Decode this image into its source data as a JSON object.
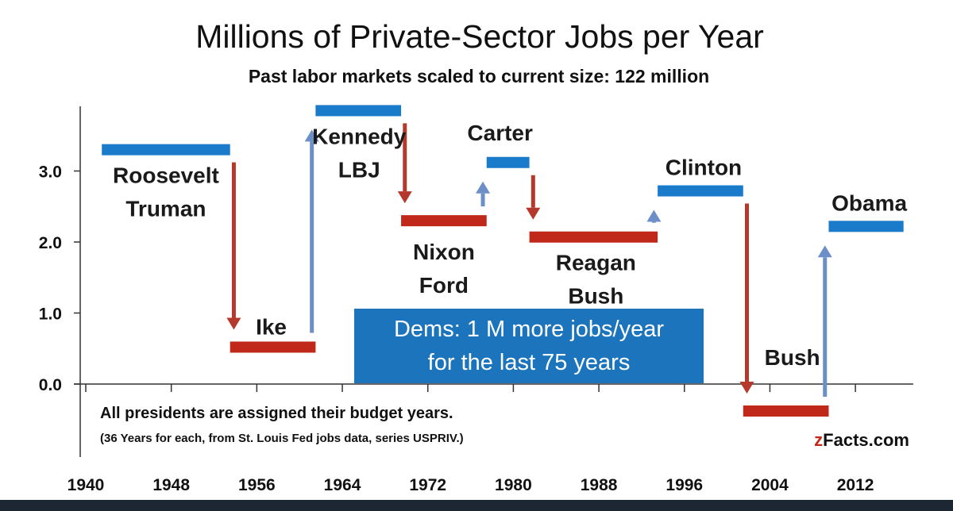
{
  "chart_data": {
    "type": "step-bar",
    "title": "Millions of Private-Sector Jobs per Year",
    "subtitle": "Past labor markets scaled to current size: 122 million",
    "xlabel": "",
    "ylabel": "",
    "x_ticks": [
      "1940",
      "1948",
      "1956",
      "1964",
      "1972",
      "1980",
      "1988",
      "1996",
      "2004",
      "2012"
    ],
    "x_tick_values": [
      1940,
      1948,
      1956,
      1964,
      1972,
      1980,
      1988,
      1996,
      2004,
      2012
    ],
    "xlim": [
      1940,
      2018
    ],
    "y_ticks": [
      "0.0",
      "1.0",
      "2.0",
      "3.0"
    ],
    "y_tick_values": [
      0,
      1,
      2,
      3
    ],
    "ylim": [
      -1.0,
      4.0
    ],
    "grid": false,
    "colors": {
      "dem": "#1a7bcb",
      "rep": "#c0281a",
      "arrow_up": "#6b8fc6",
      "arrow_down": "#b5382c",
      "callout": "#1c75bc"
    },
    "series": [
      {
        "name": "Roosevelt Truman",
        "label_lines": [
          "Roosevelt",
          "Truman"
        ],
        "party": "dem",
        "start": 1941.5,
        "end": 1953.5,
        "value": 3.3
      },
      {
        "name": "Ike",
        "label_lines": [
          "Ike"
        ],
        "party": "rep",
        "start": 1953.5,
        "end": 1961.5,
        "value": 0.52
      },
      {
        "name": "Kennedy LBJ",
        "label_lines": [
          "Kennedy",
          "LBJ"
        ],
        "party": "dem",
        "start": 1961.5,
        "end": 1969.5,
        "value": 3.85
      },
      {
        "name": "Nixon Ford",
        "label_lines": [
          "Nixon",
          "Ford"
        ],
        "party": "rep",
        "start": 1969.5,
        "end": 1977.5,
        "value": 2.3
      },
      {
        "name": "Carter",
        "label_lines": [
          "Carter"
        ],
        "party": "dem",
        "start": 1977.5,
        "end": 1981.5,
        "value": 3.12
      },
      {
        "name": "Reagan Bush",
        "label_lines": [
          "Reagan",
          "Bush"
        ],
        "party": "rep",
        "start": 1981.5,
        "end": 1993.5,
        "value": 2.07
      },
      {
        "name": "Clinton",
        "label_lines": [
          "Clinton"
        ],
        "party": "dem",
        "start": 1993.5,
        "end": 2001.5,
        "value": 2.72
      },
      {
        "name": "Bush",
        "label_lines": [
          "Bush"
        ],
        "party": "rep",
        "start": 2001.5,
        "end": 2009.5,
        "value": -0.38
      },
      {
        "name": "Obama",
        "label_lines": [
          "Obama"
        ],
        "party": "dem",
        "start": 2009.5,
        "end": 2016.5,
        "value": 2.22
      }
    ],
    "callout_lines": [
      "Dems: 1 M more jobs/year",
      "for the last 75 years"
    ],
    "annotation": "All presidents are assigned their budget years.",
    "annotation_sub": "(36 Years for each, from St. Louis Fed jobs data, series USPRIV.)",
    "source_prefix": "z",
    "source_rest": "Facts.com"
  }
}
